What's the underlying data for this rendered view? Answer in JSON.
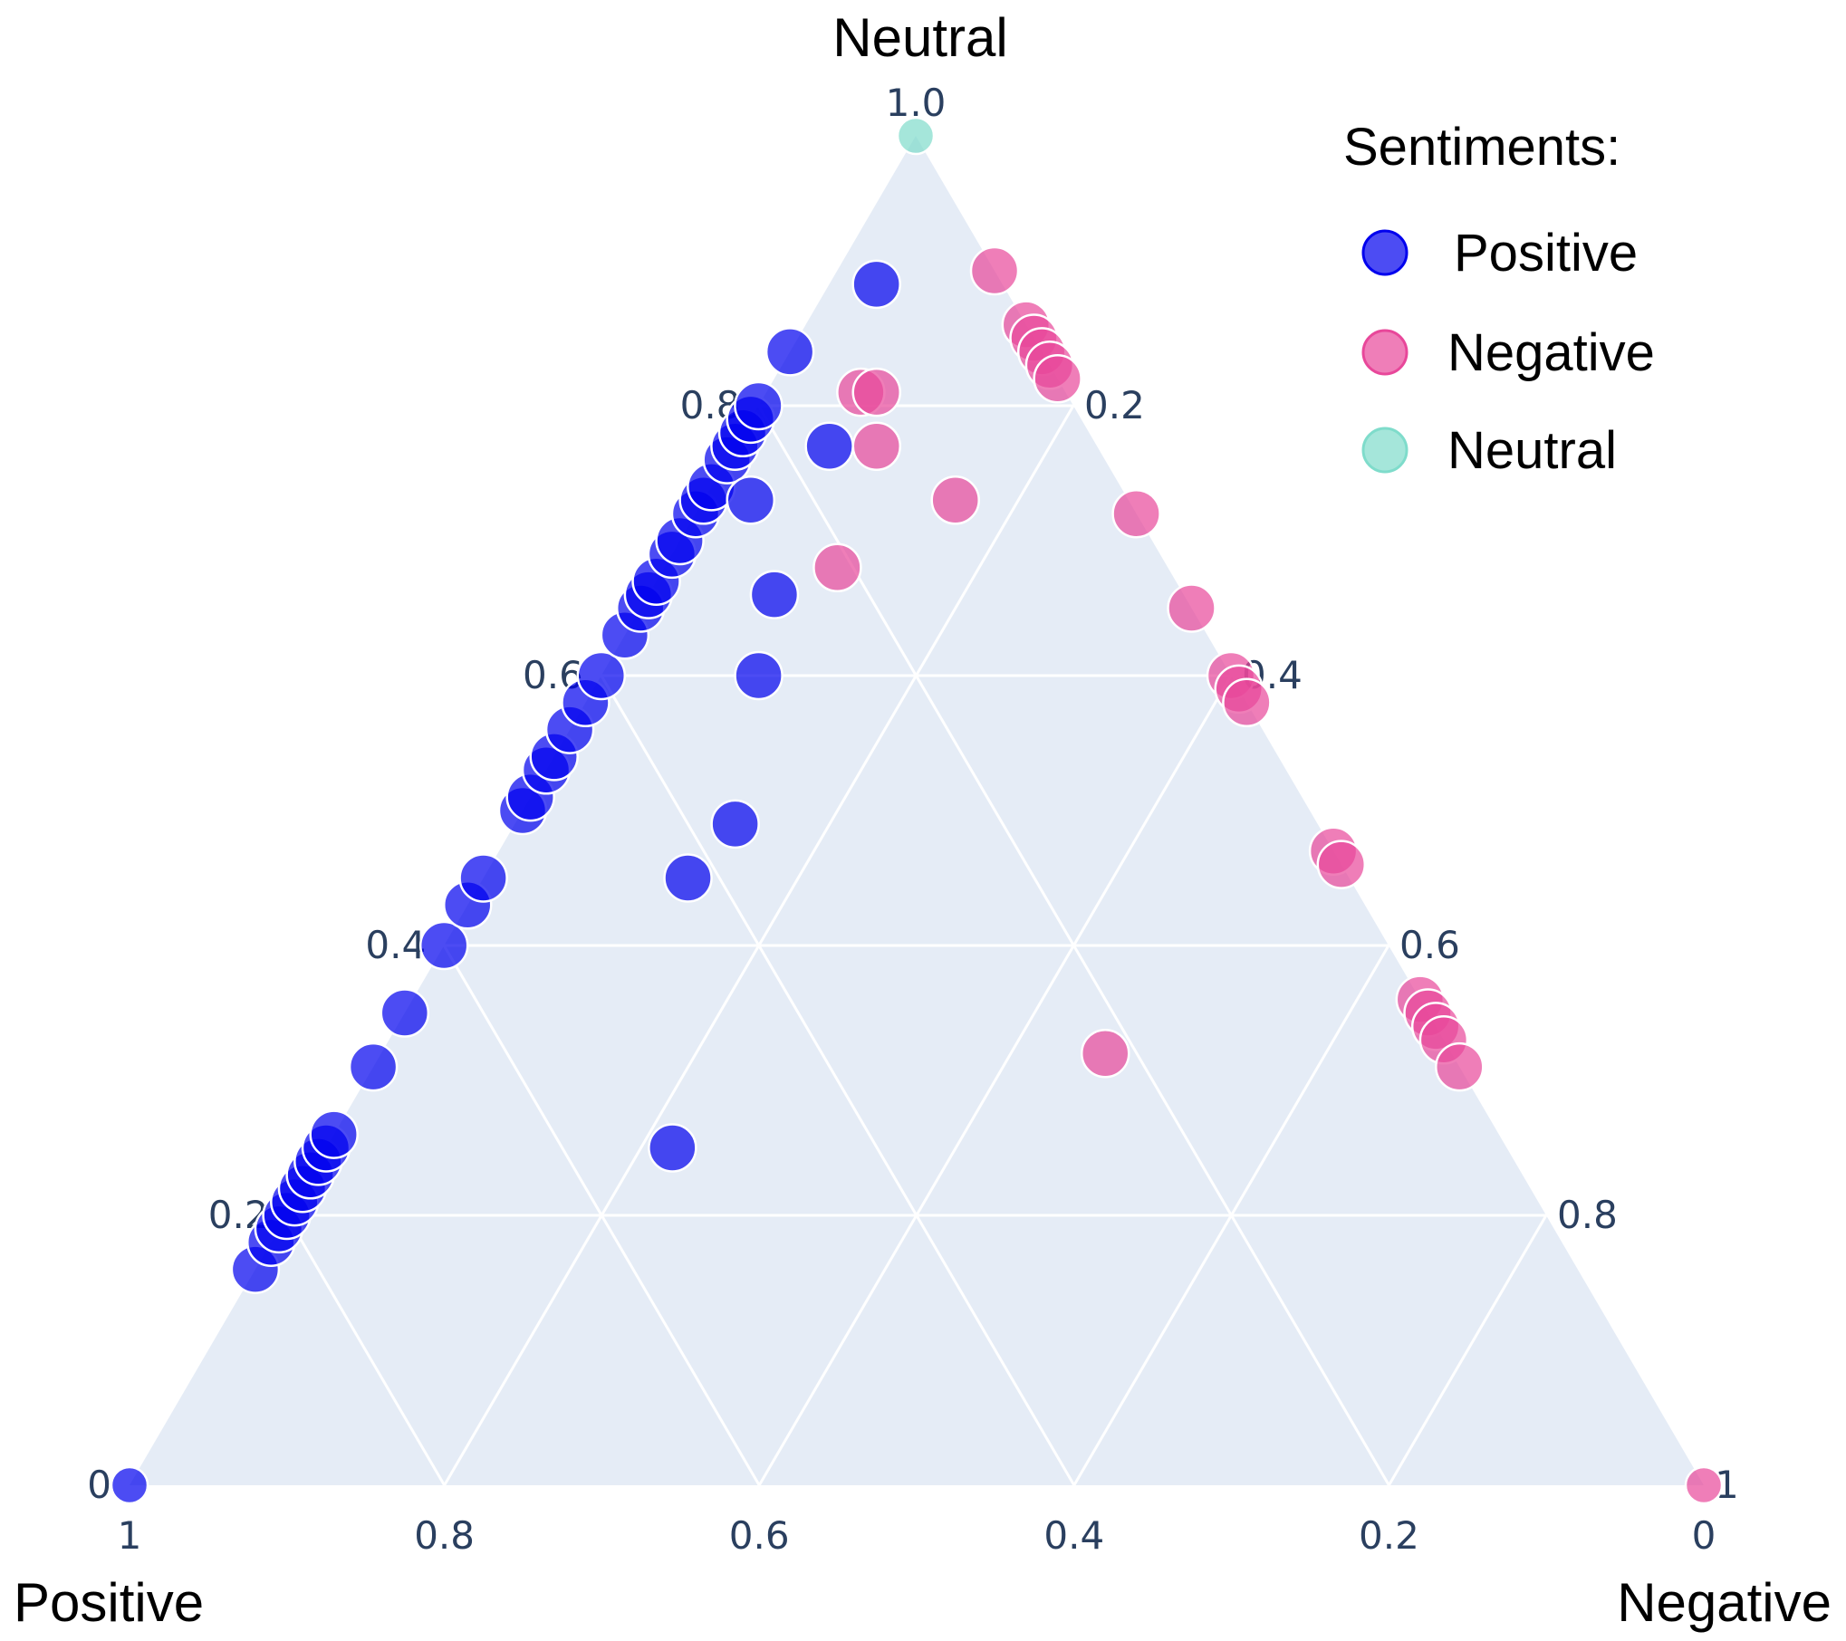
{
  "chart_data": {
    "type": "scatter",
    "subtype": "ternary",
    "corner_titles": {
      "top": "Neutral",
      "left": "Positive",
      "right": "Negative"
    },
    "axis_ticks": {
      "neutral": [
        "0",
        "0.2",
        "0.4",
        "0.6",
        "0.8",
        "1.0"
      ],
      "negative": [
        "0.2",
        "0.4",
        "0.6",
        "0.8",
        "1"
      ],
      "positive": [
        "1",
        "0.8",
        "0.6",
        "0.4",
        "0.2",
        "0"
      ]
    },
    "background_color": "#e5ecf6",
    "grid": true,
    "legend": {
      "title": "Sentiments:",
      "placement": "top-right",
      "items": [
        {
          "name": "Positive",
          "color": "#0000ee"
        },
        {
          "name": "Negative",
          "color": "#e8479a"
        },
        {
          "name": "Neutral",
          "color": "#7fdccb"
        }
      ]
    },
    "series": [
      {
        "name": "Positive",
        "color": "#0000ee",
        "points": [
          {
            "n": 0.16,
            "neg": 0.0
          },
          {
            "n": 0.18,
            "neg": 0.0
          },
          {
            "n": 0.19,
            "neg": 0.0
          },
          {
            "n": 0.2,
            "neg": 0.0
          },
          {
            "n": 0.21,
            "neg": 0.0
          },
          {
            "n": 0.22,
            "neg": 0.0
          },
          {
            "n": 0.23,
            "neg": 0.0
          },
          {
            "n": 0.24,
            "neg": 0.0
          },
          {
            "n": 0.25,
            "neg": 0.0
          },
          {
            "n": 0.26,
            "neg": 0.0
          },
          {
            "n": 0.31,
            "neg": 0.0
          },
          {
            "n": 0.35,
            "neg": 0.0
          },
          {
            "n": 0.4,
            "neg": 0.0
          },
          {
            "n": 0.43,
            "neg": 0.0
          },
          {
            "n": 0.45,
            "neg": 0.0
          },
          {
            "n": 0.5,
            "neg": 0.0
          },
          {
            "n": 0.51,
            "neg": 0.0
          },
          {
            "n": 0.53,
            "neg": 0.0
          },
          {
            "n": 0.54,
            "neg": 0.0
          },
          {
            "n": 0.56,
            "neg": 0.0
          },
          {
            "n": 0.58,
            "neg": 0.0
          },
          {
            "n": 0.6,
            "neg": 0.0
          },
          {
            "n": 0.63,
            "neg": 0.0
          },
          {
            "n": 0.65,
            "neg": 0.0
          },
          {
            "n": 0.66,
            "neg": 0.0
          },
          {
            "n": 0.67,
            "neg": 0.0
          },
          {
            "n": 0.69,
            "neg": 0.0
          },
          {
            "n": 0.7,
            "neg": 0.0
          },
          {
            "n": 0.72,
            "neg": 0.0
          },
          {
            "n": 0.73,
            "neg": 0.0
          },
          {
            "n": 0.74,
            "neg": 0.0
          },
          {
            "n": 0.76,
            "neg": 0.0
          },
          {
            "n": 0.77,
            "neg": 0.0
          },
          {
            "n": 0.78,
            "neg": 0.0
          },
          {
            "n": 0.79,
            "neg": 0.0
          },
          {
            "n": 0.8,
            "neg": 0.0
          },
          {
            "n": 0.84,
            "neg": 0.0
          },
          {
            "n": 0.89,
            "neg": 0.03
          },
          {
            "n": 0.77,
            "neg": 0.06
          },
          {
            "n": 0.73,
            "neg": 0.03
          },
          {
            "n": 0.66,
            "neg": 0.08
          },
          {
            "n": 0.6,
            "neg": 0.1
          },
          {
            "n": 0.49,
            "neg": 0.14
          },
          {
            "n": 0.45,
            "neg": 0.13
          },
          {
            "n": 0.25,
            "neg": 0.22
          },
          {
            "n": 0.0,
            "neg": 0.0
          }
        ]
      },
      {
        "name": "Negative",
        "color": "#e8479a",
        "points": [
          {
            "n": 0.9,
            "neg": 0.1
          },
          {
            "n": 0.86,
            "neg": 0.14
          },
          {
            "n": 0.85,
            "neg": 0.15
          },
          {
            "n": 0.84,
            "neg": 0.16
          },
          {
            "n": 0.83,
            "neg": 0.17
          },
          {
            "n": 0.82,
            "neg": 0.18
          },
          {
            "n": 0.81,
            "neg": 0.06
          },
          {
            "n": 0.81,
            "neg": 0.07
          },
          {
            "n": 0.77,
            "neg": 0.09
          },
          {
            "n": 0.73,
            "neg": 0.16
          },
          {
            "n": 0.72,
            "neg": 0.28
          },
          {
            "n": 0.68,
            "neg": 0.11
          },
          {
            "n": 0.65,
            "neg": 0.35
          },
          {
            "n": 0.6,
            "neg": 0.4
          },
          {
            "n": 0.59,
            "neg": 0.41
          },
          {
            "n": 0.58,
            "neg": 0.42
          },
          {
            "n": 0.47,
            "neg": 0.53
          },
          {
            "n": 0.46,
            "neg": 0.54
          },
          {
            "n": 0.36,
            "neg": 0.64
          },
          {
            "n": 0.35,
            "neg": 0.65
          },
          {
            "n": 0.34,
            "neg": 0.66
          },
          {
            "n": 0.33,
            "neg": 0.67
          },
          {
            "n": 0.32,
            "neg": 0.46
          },
          {
            "n": 0.31,
            "neg": 0.69
          },
          {
            "n": 0.0,
            "neg": 1.0
          }
        ]
      },
      {
        "name": "Neutral",
        "color": "#7fdccb",
        "points": [
          {
            "n": 1.0,
            "neg": 0.0
          }
        ]
      }
    ]
  }
}
